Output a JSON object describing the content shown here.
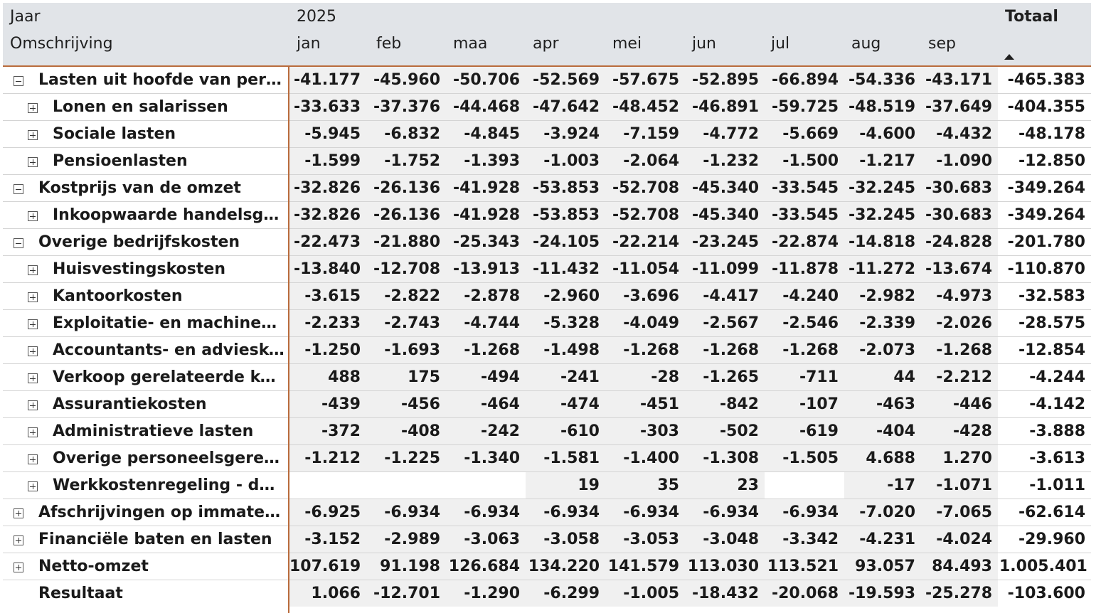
{
  "header": {
    "year_label": "Jaar",
    "year_value": "2025",
    "description_label": "Omschrijving",
    "total_label": "Totaal",
    "months": [
      "jan",
      "feb",
      "maa",
      "apr",
      "mei",
      "jun",
      "jul",
      "aug",
      "sep"
    ]
  },
  "icons": {
    "collapse": "minus-square-icon",
    "expand": "plus-square-icon",
    "sort": "sort-ascending-icon"
  },
  "colors": {
    "header_bg": "#e1e4e8",
    "cell_bg": "#f0f0f0",
    "accent_line": "#b96b3c"
  },
  "rows": [
    {
      "label": "Lasten uit hoofde van perso…",
      "level": 0,
      "toggle": "collapse",
      "values": [
        "-41.177",
        "-45.960",
        "-50.706",
        "-52.569",
        "-57.675",
        "-52.895",
        "-66.894",
        "-54.336",
        "-43.171"
      ],
      "total": "-465.383"
    },
    {
      "label": "Lonen en salarissen",
      "level": 1,
      "toggle": "expand",
      "values": [
        "-33.633",
        "-37.376",
        "-44.468",
        "-47.642",
        "-48.452",
        "-46.891",
        "-59.725",
        "-48.519",
        "-37.649"
      ],
      "total": "-404.355"
    },
    {
      "label": "Sociale lasten",
      "level": 1,
      "toggle": "expand",
      "values": [
        "-5.945",
        "-6.832",
        "-4.845",
        "-3.924",
        "-7.159",
        "-4.772",
        "-5.669",
        "-4.600",
        "-4.432"
      ],
      "total": "-48.178"
    },
    {
      "label": "Pensioenlasten",
      "level": 1,
      "toggle": "expand",
      "values": [
        "-1.599",
        "-1.752",
        "-1.393",
        "-1.003",
        "-2.064",
        "-1.232",
        "-1.500",
        "-1.217",
        "-1.090"
      ],
      "total": "-12.850"
    },
    {
      "label": "Kostprijs van de omzet",
      "level": 0,
      "toggle": "collapse",
      "values": [
        "-32.826",
        "-26.136",
        "-41.928",
        "-53.853",
        "-52.708",
        "-45.340",
        "-33.545",
        "-32.245",
        "-30.683"
      ],
      "total": "-349.264"
    },
    {
      "label": "Inkoopwaarde handelsgoe…",
      "level": 1,
      "toggle": "expand",
      "values": [
        "-32.826",
        "-26.136",
        "-41.928",
        "-53.853",
        "-52.708",
        "-45.340",
        "-33.545",
        "-32.245",
        "-30.683"
      ],
      "total": "-349.264"
    },
    {
      "label": "Overige bedrijfskosten",
      "level": 0,
      "toggle": "collapse",
      "values": [
        "-22.473",
        "-21.880",
        "-25.343",
        "-24.105",
        "-22.214",
        "-23.245",
        "-22.874",
        "-14.818",
        "-24.828"
      ],
      "total": "-201.780"
    },
    {
      "label": "Huisvestingskosten",
      "level": 1,
      "toggle": "expand",
      "values": [
        "-13.840",
        "-12.708",
        "-13.913",
        "-11.432",
        "-11.054",
        "-11.099",
        "-11.878",
        "-11.272",
        "-13.674"
      ],
      "total": "-110.870"
    },
    {
      "label": "Kantoorkosten",
      "level": 1,
      "toggle": "expand",
      "values": [
        "-3.615",
        "-2.822",
        "-2.878",
        "-2.960",
        "-3.696",
        "-4.417",
        "-4.240",
        "-2.982",
        "-4.973"
      ],
      "total": "-32.583"
    },
    {
      "label": "Exploitatie- en machineko…",
      "level": 1,
      "toggle": "expand",
      "values": [
        "-2.233",
        "-2.743",
        "-4.744",
        "-5.328",
        "-4.049",
        "-2.567",
        "-2.546",
        "-2.339",
        "-2.026"
      ],
      "total": "-28.575"
    },
    {
      "label": "Accountants- en adviesko…",
      "level": 1,
      "toggle": "expand",
      "values": [
        "-1.250",
        "-1.693",
        "-1.268",
        "-1.498",
        "-1.268",
        "-1.268",
        "-1.268",
        "-2.073",
        "-1.268"
      ],
      "total": "-12.854"
    },
    {
      "label": "Verkoop gerelateerde kost…",
      "level": 1,
      "toggle": "expand",
      "values": [
        "488",
        "175",
        "-494",
        "-241",
        "-28",
        "-1.265",
        "-711",
        "44",
        "-2.212"
      ],
      "total": "-4.244"
    },
    {
      "label": "Assurantiekosten",
      "level": 1,
      "toggle": "expand",
      "values": [
        "-439",
        "-456",
        "-464",
        "-474",
        "-451",
        "-842",
        "-107",
        "-463",
        "-446"
      ],
      "total": "-4.142"
    },
    {
      "label": "Administratieve lasten",
      "level": 1,
      "toggle": "expand",
      "values": [
        "-372",
        "-408",
        "-242",
        "-610",
        "-303",
        "-502",
        "-619",
        "-404",
        "-428"
      ],
      "total": "-3.888"
    },
    {
      "label": "Overige personeelsgerelat…",
      "level": 1,
      "toggle": "expand",
      "values": [
        "-1.212",
        "-1.225",
        "-1.340",
        "-1.581",
        "-1.400",
        "-1.308",
        "-1.505",
        "4.688",
        "1.270"
      ],
      "total": "-3.613"
    },
    {
      "label": "Werkkostenregeling - detail",
      "level": 1,
      "toggle": "expand",
      "values": [
        "",
        "",
        "",
        "19",
        "35",
        "23",
        "",
        "-17",
        "-1.071"
      ],
      "total": "-1.011"
    },
    {
      "label": "Afschrijvingen op immateri…",
      "level": 0,
      "toggle": "expand",
      "values": [
        "-6.925",
        "-6.934",
        "-6.934",
        "-6.934",
        "-6.934",
        "-6.934",
        "-6.934",
        "-7.020",
        "-7.065"
      ],
      "total": "-62.614"
    },
    {
      "label": "Financiële baten en lasten",
      "level": 0,
      "toggle": "expand",
      "values": [
        "-3.152",
        "-2.989",
        "-3.063",
        "-3.058",
        "-3.053",
        "-3.048",
        "-3.342",
        "-4.231",
        "-4.024"
      ],
      "total": "-29.960"
    },
    {
      "label": "Netto-omzet",
      "level": 0,
      "toggle": "expand",
      "values": [
        "107.619",
        "91.198",
        "126.684",
        "134.220",
        "141.579",
        "113.030",
        "113.521",
        "93.057",
        "84.493"
      ],
      "total": "1.005.401"
    },
    {
      "label": "Resultaat",
      "level": 0,
      "toggle": "none",
      "values": [
        "1.066",
        "-12.701",
        "-1.290",
        "-6.299",
        "-1.005",
        "-18.432",
        "-20.068",
        "-19.593",
        "-25.278"
      ],
      "total": "-103.600"
    }
  ]
}
